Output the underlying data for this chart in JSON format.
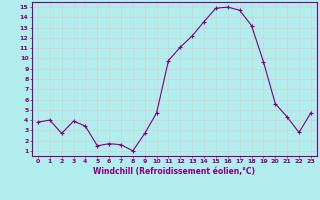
{
  "x": [
    0,
    1,
    2,
    3,
    4,
    5,
    6,
    7,
    8,
    9,
    10,
    11,
    12,
    13,
    14,
    15,
    16,
    17,
    18,
    19,
    20,
    21,
    22,
    23
  ],
  "y": [
    3.8,
    4.0,
    2.7,
    3.9,
    3.4,
    1.5,
    1.7,
    1.6,
    1.0,
    2.7,
    4.7,
    9.8,
    11.1,
    12.2,
    13.6,
    14.9,
    15.0,
    14.7,
    13.2,
    9.7,
    5.6,
    4.3,
    2.8,
    4.7
  ],
  "line_color": "#800080",
  "marker": "+",
  "marker_size": 3.5,
  "bg_color": "#b2eeee",
  "grid_color": "#d0d0d0",
  "xlabel": "Windchill (Refroidissement éolien,°C)",
  "ylabel_ticks": [
    1,
    2,
    3,
    4,
    5,
    6,
    7,
    8,
    9,
    10,
    11,
    12,
    13,
    14,
    15
  ],
  "xlim": [
    -0.5,
    23.5
  ],
  "ylim": [
    0.5,
    15.5
  ],
  "tick_color": "#800080",
  "label_color": "#800080",
  "x_fontsize": 4.5,
  "y_fontsize": 4.5,
  "xlabel_fontsize": 5.5,
  "linewidth": 0.8
}
